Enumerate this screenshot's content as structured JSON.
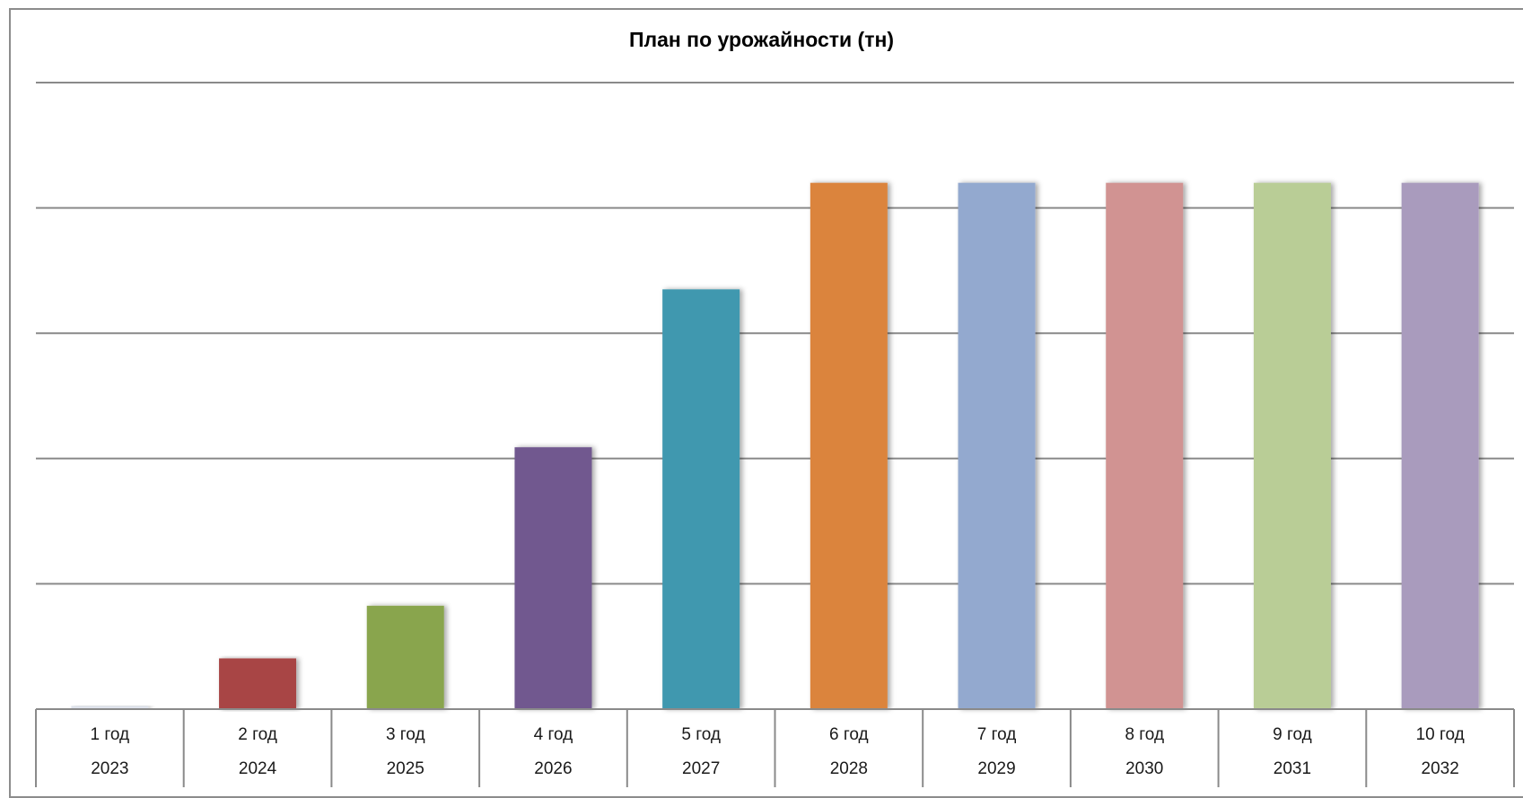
{
  "chart_data": {
    "type": "bar",
    "title": "План по урожайности (тн)",
    "xlabel": "",
    "ylabel": "",
    "categories": [
      "1 год",
      "2 год",
      "3 год",
      "4 год",
      "5 год",
      "6 год",
      "7 год",
      "8 год",
      "9 год",
      "10 год"
    ],
    "sub_categories": [
      "2023",
      "2024",
      "2025",
      "2026",
      "2027",
      "2028",
      "2029",
      "2030",
      "2031",
      "2032"
    ],
    "values": [
      0.5,
      8.1,
      16.5,
      41.8,
      67.0,
      84.0,
      84.0,
      84.0,
      84.0,
      84.0
    ],
    "bar_colors": [
      "#dfe3ec",
      "#a84444",
      "#89a54e",
      "#71588f",
      "#4198af",
      "#db843d",
      "#93a9cf",
      "#d19392",
      "#b9cd96",
      "#a99bbd"
    ],
    "ylim": [
      0,
      100
    ],
    "y_gridlines": [
      20,
      40,
      60,
      80,
      100
    ],
    "grid": true,
    "legend": "none"
  }
}
